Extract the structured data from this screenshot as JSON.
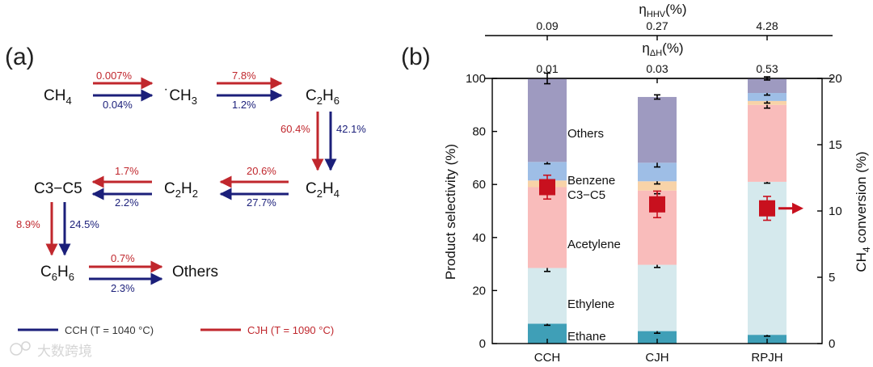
{
  "panel_a": {
    "label": "(a)",
    "colors": {
      "cjh": "#c0272d",
      "cch": "#1b1f7a"
    },
    "species": {
      "ch4": "CH",
      "ch4_sub": "4",
      "ch3": "˙CH",
      "ch3_sub": "3",
      "c2h6_a": "C",
      "c2h6_s1": "2",
      "c2h6_b": "H",
      "c2h6_s2": "6",
      "c2h4_a": "C",
      "c2h4_s1": "2",
      "c2h4_b": "H",
      "c2h4_s2": "4",
      "c2h2_a": "C",
      "c2h2_s1": "2",
      "c2h2_b": "H",
      "c2h2_s2": "2",
      "c3c5": "C3−C5",
      "c6h6_a": "C",
      "c6h6_s1": "6",
      "c6h6_b": "H",
      "c6h6_s2": "6",
      "others": "Others"
    },
    "rates": {
      "ch4_ch3_cjh": "0.007%",
      "ch4_ch3_cch": "0.04%",
      "ch3_c2h6_cjh": "7.8%",
      "ch3_c2h6_cch": "1.2%",
      "c2h6_c2h4_cjh": "60.4%",
      "c2h6_c2h4_cch": "42.1%",
      "c2h4_c2h2_cjh": "20.6%",
      "c2h4_c2h2_cch": "27.7%",
      "c2h2_c3c5_cjh": "1.7%",
      "c2h2_c3c5_cch": "2.2%",
      "c3c5_c6h6_cjh": "8.9%",
      "c3c5_c6h6_cch": "24.5%",
      "c6h6_others_cjh": "0.7%",
      "c6h6_others_cch": "2.3%"
    },
    "legend": {
      "cch": "CCH (T = 1040 °C)",
      "cjh": "CJH (T = 1090 °C)"
    },
    "watermark": "大数跨境"
  },
  "panel_b": {
    "label": "(b)",
    "top_axis_1": {
      "symbol": "η",
      "sub": "HHV",
      "unit": "(%)",
      "values": [
        "0.09",
        "0.27",
        "4.28"
      ]
    },
    "top_axis_2": {
      "symbol": "η",
      "sub": "ΔH",
      "unit": "(%)",
      "values": [
        "0.01",
        "0.03",
        "0.53"
      ]
    }
  },
  "chart_data": {
    "type": "bar",
    "stacked": true,
    "categories": [
      "CCH",
      "CJH",
      "RPJH"
    ],
    "ylabel": "Product selectivity (%)",
    "ylim": [
      0,
      100
    ],
    "yticks": [
      "0",
      "20",
      "40",
      "60",
      "80",
      "100"
    ],
    "y2label_main": "CH",
    "y2label_sub": "4",
    "y2label_rest": " conversion (%)",
    "y2lim": [
      0,
      20
    ],
    "y2ticks": [
      "0",
      "5",
      "10",
      "15",
      "20"
    ],
    "series": [
      {
        "name": "Ethane",
        "color": "#3f9fb7",
        "values": [
          7.5,
          4.7,
          3.3
        ],
        "cumulative_errors": [
          0.6,
          0.8,
          0.5
        ]
      },
      {
        "name": "Ethylene",
        "color": "#d5e9ed",
        "values": [
          21,
          25,
          57.7
        ],
        "cumulative_errors": [
          1.3,
          1.0,
          0.5
        ]
      },
      {
        "name": "Acetylene",
        "color": "#f9bcbb",
        "values": [
          30.5,
          28,
          29
        ],
        "cumulative_errors": [
          1.2,
          1.2,
          1.2
        ]
      },
      {
        "name": "C3−C5",
        "color": "#f8d3a8",
        "values": [
          2.5,
          3.5,
          1.5
        ],
        "cumulative_errors": [
          1.0,
          1.0,
          0.8
        ]
      },
      {
        "name": "Benzene",
        "color": "#9ebee6",
        "values": [
          7,
          7,
          3
        ],
        "cumulative_errors": [
          0.7,
          1.6,
          0.8
        ]
      },
      {
        "name": "Others",
        "color": "#9e9ac0",
        "values": [
          31.5,
          24.8,
          5.5
        ],
        "cumulative_errors": [
          2.0,
          0.8,
          0.6
        ]
      }
    ],
    "conversion": {
      "name": "CH4 conversion",
      "color": "#c8101e",
      "values": [
        11.8,
        10.5,
        10.2
      ],
      "errors": [
        0.9,
        1.0,
        0.9
      ]
    }
  }
}
